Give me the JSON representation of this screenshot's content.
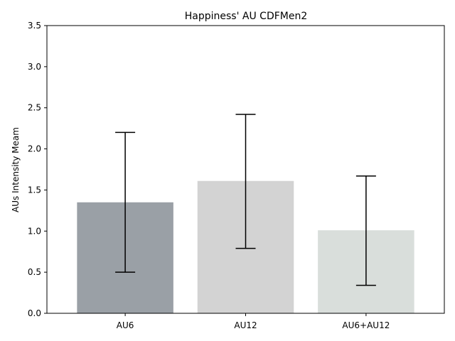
{
  "chart_data": {
    "type": "bar",
    "title": "Happiness' AU CDFMen2",
    "xlabel": "",
    "ylabel": "AUs Intensity Meam",
    "categories": [
      "AU6",
      "AU12",
      "AU6+AU12"
    ],
    "values": [
      1.35,
      1.61,
      1.01
    ],
    "error_low": [
      0.5,
      0.79,
      0.34
    ],
    "error_high": [
      2.2,
      2.42,
      1.67
    ],
    "colors": [
      "#9aa0a6",
      "#d3d3d3",
      "#d9dedb"
    ],
    "ylim": [
      0,
      3.5
    ],
    "yticks": [
      "0.0",
      "0.5",
      "1.0",
      "1.5",
      "2.0",
      "2.5",
      "3.0",
      "3.5"
    ],
    "grid": false,
    "legend": "none"
  }
}
